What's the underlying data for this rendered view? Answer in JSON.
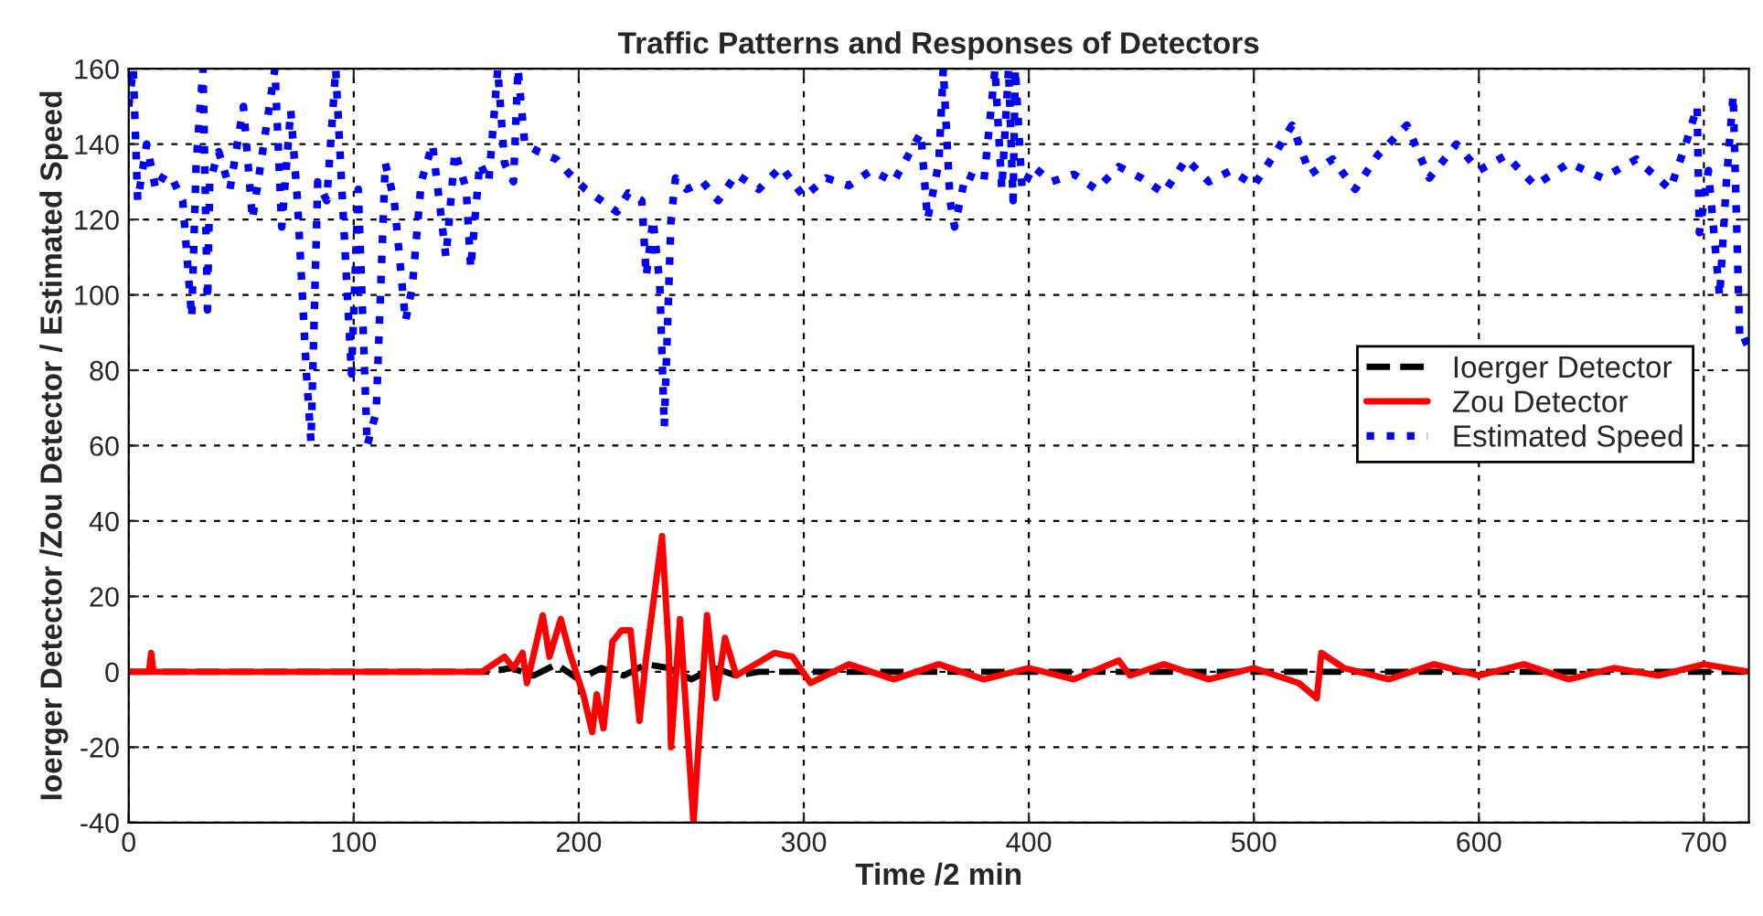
{
  "chart_data": {
    "type": "line",
    "title": "Traffic Patterns and Responses of Detectors",
    "xlabel": "Time /2 min",
    "ylabel": "Ioerger Detector /Zou Detector / Estimated Speed",
    "xlim": [
      0,
      720
    ],
    "xticks": [
      0,
      100,
      200,
      300,
      400,
      500,
      600,
      700
    ],
    "ylim": [
      -40,
      160
    ],
    "yticks": [
      -40,
      -20,
      0,
      20,
      40,
      60,
      80,
      100,
      120,
      140,
      160
    ],
    "grid": true,
    "legend": "right",
    "series": [
      {
        "name": "Ioerger Detector",
        "color": "#000000",
        "line_style": "dashed",
        "x": [
          0,
          100,
          160,
          170,
          180,
          190,
          200,
          210,
          220,
          230,
          240,
          250,
          260,
          270,
          280,
          300,
          400,
          500,
          600,
          720
        ],
        "values": [
          0,
          0,
          0,
          1,
          -1,
          2,
          -2,
          1,
          -1,
          2,
          1,
          -2,
          1,
          -1,
          0,
          0,
          0,
          0,
          0,
          0
        ]
      },
      {
        "name": "Zou Detector",
        "color": "#ff0000",
        "line_style": "solid",
        "x": [
          0,
          9,
          10,
          11,
          12,
          100,
          157,
          162,
          167,
          171,
          175,
          177,
          184,
          187,
          192,
          196,
          202,
          206,
          208,
          211,
          215,
          219,
          223,
          227,
          230,
          237,
          240,
          241,
          245,
          251,
          257,
          261,
          265,
          270,
          287,
          295,
          303,
          320,
          340,
          360,
          380,
          400,
          420,
          440,
          445,
          460,
          480,
          500,
          520,
          528,
          530,
          540,
          560,
          580,
          600,
          620,
          640,
          660,
          680,
          700,
          720
        ],
        "values": [
          0,
          0,
          5,
          0,
          0,
          0,
          0,
          2,
          4,
          1,
          5,
          -3,
          15,
          4,
          14,
          5,
          -6,
          -16,
          -6,
          -15,
          8,
          11,
          11,
          -13,
          4,
          36,
          6,
          -20,
          14,
          -40,
          15,
          -7,
          9,
          -1,
          5,
          4,
          -3,
          2,
          -2,
          2,
          -2,
          1,
          -2,
          3,
          -1,
          2,
          -2,
          1,
          -3,
          -7,
          5,
          1,
          -2,
          2,
          -1,
          2,
          -2,
          1,
          -1,
          2,
          0
        ]
      },
      {
        "name": "Estimated Speed",
        "color": "#0000ff",
        "line_style": "dotted",
        "x": [
          0,
          2,
          4,
          8,
          12,
          16,
          20,
          24,
          28,
          30,
          33,
          35,
          36,
          40,
          45,
          51,
          55,
          60,
          65,
          68,
          72,
          75,
          79,
          81,
          84,
          88,
          92,
          95,
          99,
          102,
          106,
          110,
          114,
          118,
          123,
          126,
          130,
          135,
          141,
          145,
          150,
          152,
          156,
          160,
          164,
          167,
          171,
          173,
          176,
          182,
          190,
          196,
          203,
          210,
          217,
          222,
          228,
          230,
          233,
          236,
          238,
          241,
          243,
          248,
          255,
          262,
          270,
          280,
          290,
          300,
          310,
          320,
          330,
          340,
          352,
          355,
          360,
          362,
          365,
          367,
          372,
          380,
          385,
          388,
          391,
          393,
          394,
          397,
          402,
          410,
          420,
          430,
          440,
          450,
          460,
          470,
          480,
          490,
          500,
          510,
          517,
          525,
          535,
          545,
          555,
          568,
          578,
          590,
          600,
          612,
          625,
          640,
          655,
          670,
          685,
          692,
          697,
          698,
          702,
          707,
          710,
          713,
          716,
          720
        ],
        "values": [
          150,
          160,
          125,
          140,
          128,
          132,
          130,
          125,
          94,
          135,
          160,
          96,
          130,
          138,
          128,
          150,
          120,
          140,
          160,
          118,
          149,
          125,
          79,
          61,
          130,
          125,
          160,
          125,
          79,
          128,
          60,
          69,
          135,
          125,
          93,
          102,
          130,
          140,
          110,
          138,
          128,
          107,
          135,
          130,
          160,
          135,
          130,
          160,
          140,
          138,
          136,
          132,
          128,
          125,
          122,
          127,
          125,
          105,
          120,
          103,
          65,
          120,
          131,
          128,
          130,
          125,
          132,
          128,
          134,
          126,
          131,
          129,
          133,
          130,
          143,
          120,
          135,
          160,
          125,
          118,
          132,
          130,
          160,
          128,
          160,
          125,
          160,
          128,
          134,
          130,
          132,
          128,
          134,
          131,
          127,
          136,
          130,
          133,
          129,
          138,
          145,
          132,
          136,
          128,
          137,
          145,
          131,
          140,
          133,
          137,
          129,
          135,
          131,
          136,
          128,
          140,
          150,
          116.5,
          133,
          99.5,
          130,
          153,
          87,
          88
        ]
      }
    ]
  }
}
